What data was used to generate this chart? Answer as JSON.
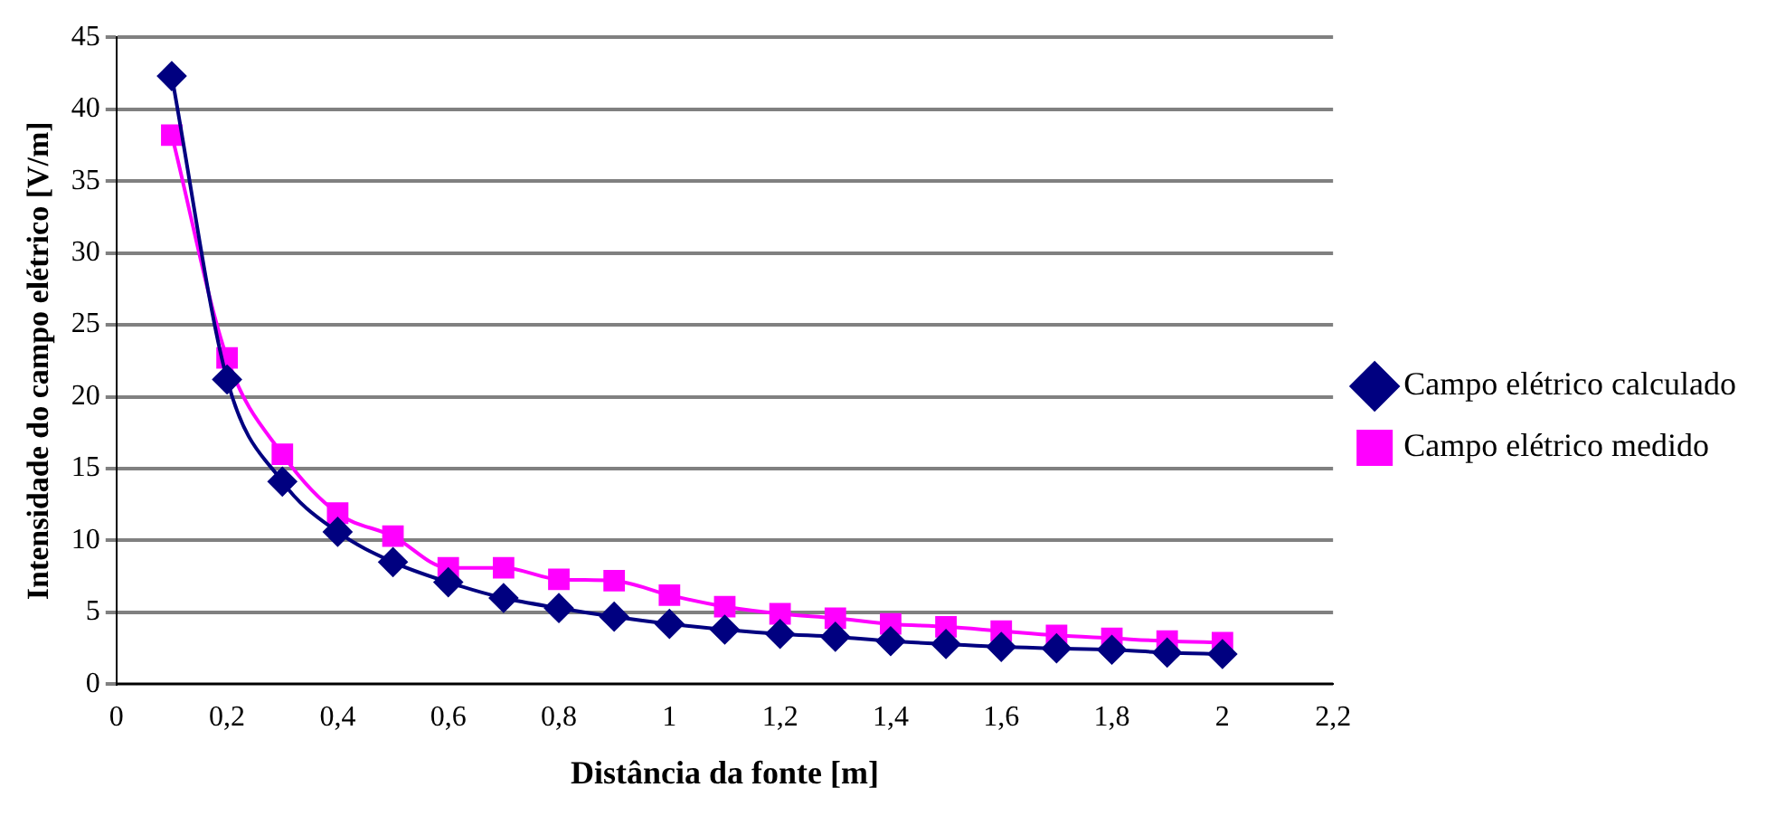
{
  "chart_data": {
    "type": "line",
    "xlabel": "Distância da fonte [m]",
    "ylabel": "Intensidade do campo elétrico [V/m]",
    "x": [
      0.1,
      0.2,
      0.3,
      0.4,
      0.5,
      0.6,
      0.7,
      0.8,
      0.9,
      1.0,
      1.1,
      1.2,
      1.3,
      1.4,
      1.5,
      1.6,
      1.7,
      1.8,
      1.9,
      2.0
    ],
    "series": [
      {
        "name": "Campo elétrico calculado",
        "color": "#000080",
        "marker": "diamond",
        "values": [
          42.3,
          21.2,
          14.1,
          10.6,
          8.5,
          7.1,
          6.0,
          5.3,
          4.7,
          4.2,
          3.8,
          3.5,
          3.3,
          3.0,
          2.8,
          2.6,
          2.5,
          2.4,
          2.2,
          2.1
        ]
      },
      {
        "name": "Campo elétrico medido",
        "color": "#ff00ff",
        "marker": "square",
        "values": [
          38.2,
          22.7,
          16.0,
          11.9,
          10.3,
          8.1,
          8.1,
          7.3,
          7.2,
          6.2,
          5.4,
          4.9,
          4.6,
          4.2,
          4.0,
          3.7,
          3.4,
          3.2,
          3.0,
          2.9
        ]
      }
    ],
    "xlim": [
      0,
      2.2
    ],
    "xticks": [
      0,
      {
        "value": 0.2,
        "label": "0,2"
      },
      {
        "value": 0.4,
        "label": "0,4"
      },
      {
        "value": 0.6,
        "label": "0,6"
      },
      {
        "value": 0.8,
        "label": "0,8"
      },
      1,
      {
        "value": 1.2,
        "label": "1,2"
      },
      {
        "value": 1.4,
        "label": "1,4"
      },
      {
        "value": 1.6,
        "label": "1,6"
      },
      {
        "value": 1.8,
        "label": "1,8"
      },
      2,
      {
        "value": 2.2,
        "label": "2,2"
      }
    ],
    "ylim": [
      0,
      45
    ],
    "yticks": [
      0,
      5,
      10,
      15,
      20,
      25,
      30,
      35,
      40,
      45
    ],
    "grid": "y",
    "legend": "right",
    "line_style": "solid"
  }
}
